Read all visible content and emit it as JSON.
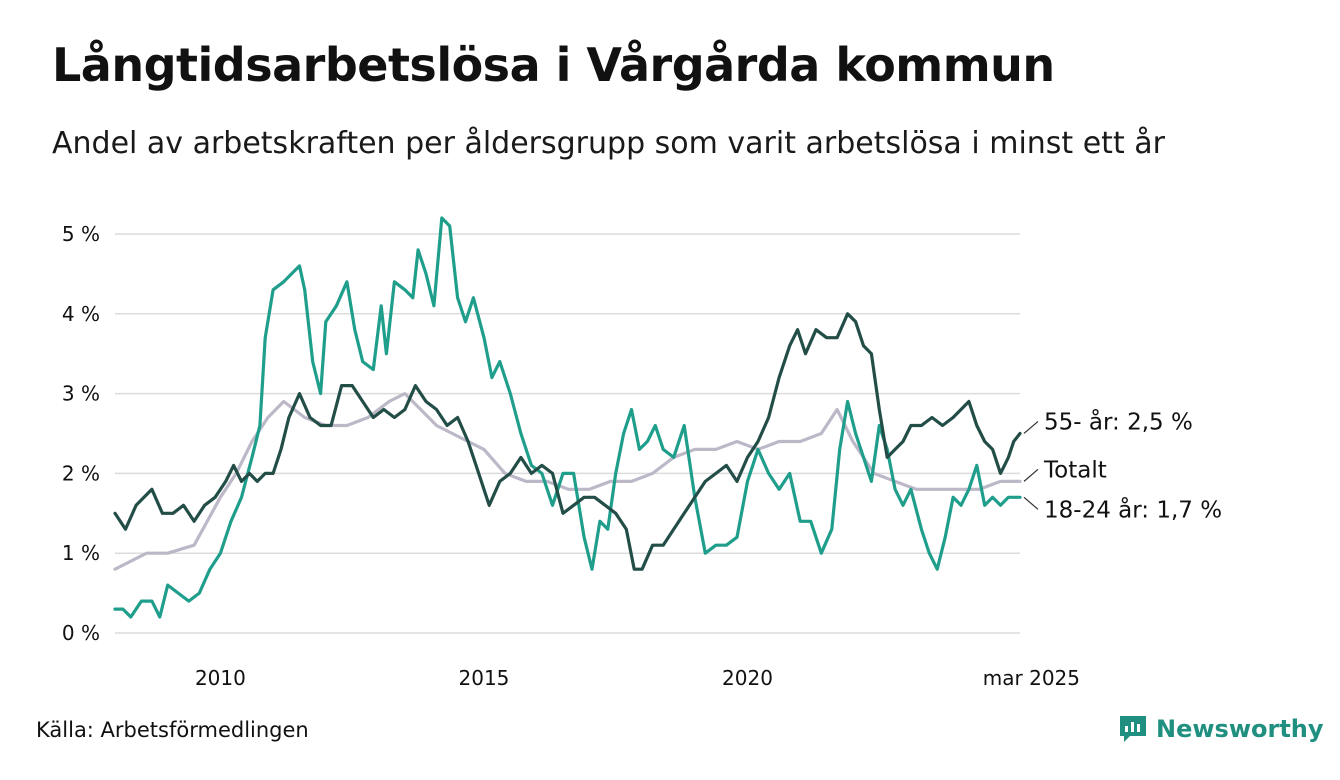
{
  "title": "Långtidsarbetslösa i Vårgårda kommun",
  "subtitle": "Andel av arbetskraften per åldersgrupp som varit arbetslösa i minst ett år",
  "source": "Källa: Arbetsförmedlingen",
  "brand": {
    "name": "Newsworthy",
    "icon": "newsworthy-logo-icon",
    "color": "#1f8f80"
  },
  "chart_data": {
    "type": "line",
    "ylim": [
      0,
      5.3
    ],
    "xlim": [
      2008.0,
      2025.17
    ],
    "yticks": [
      0,
      1,
      2,
      3,
      4,
      5
    ],
    "ytick_labels": [
      "0 %",
      "1 %",
      "2 %",
      "3 %",
      "4 %",
      "5 %"
    ],
    "xticks": [
      2010,
      2015,
      2020,
      2025.17
    ],
    "xtick_labels": [
      "2010",
      "2015",
      "2020",
      "mar 2025"
    ],
    "grid": true,
    "series": [
      {
        "name": "Totalt",
        "label": "Totalt",
        "color": "#bdb8c8",
        "points": [
          [
            2008.0,
            0.8
          ],
          [
            2008.3,
            0.9
          ],
          [
            2008.6,
            1.0
          ],
          [
            2009.0,
            1.0
          ],
          [
            2009.5,
            1.1
          ],
          [
            2010.0,
            1.7
          ],
          [
            2010.3,
            2.0
          ],
          [
            2010.6,
            2.4
          ],
          [
            2010.9,
            2.7
          ],
          [
            2011.2,
            2.9
          ],
          [
            2011.6,
            2.7
          ],
          [
            2012.0,
            2.6
          ],
          [
            2012.4,
            2.6
          ],
          [
            2012.8,
            2.7
          ],
          [
            2013.2,
            2.9
          ],
          [
            2013.5,
            3.0
          ],
          [
            2013.8,
            2.8
          ],
          [
            2014.1,
            2.6
          ],
          [
            2014.4,
            2.5
          ],
          [
            2014.7,
            2.4
          ],
          [
            2015.0,
            2.3
          ],
          [
            2015.4,
            2.0
          ],
          [
            2015.8,
            1.9
          ],
          [
            2016.2,
            1.9
          ],
          [
            2016.6,
            1.8
          ],
          [
            2017.0,
            1.8
          ],
          [
            2017.4,
            1.9
          ],
          [
            2017.8,
            1.9
          ],
          [
            2018.2,
            2.0
          ],
          [
            2018.6,
            2.2
          ],
          [
            2019.0,
            2.3
          ],
          [
            2019.4,
            2.3
          ],
          [
            2019.8,
            2.4
          ],
          [
            2020.2,
            2.3
          ],
          [
            2020.6,
            2.4
          ],
          [
            2021.0,
            2.4
          ],
          [
            2021.4,
            2.5
          ],
          [
            2021.7,
            2.8
          ],
          [
            2022.0,
            2.4
          ],
          [
            2022.4,
            2.0
          ],
          [
            2022.8,
            1.9
          ],
          [
            2023.2,
            1.8
          ],
          [
            2023.6,
            1.8
          ],
          [
            2024.0,
            1.8
          ],
          [
            2024.4,
            1.8
          ],
          [
            2024.8,
            1.9
          ],
          [
            2025.17,
            1.9
          ]
        ]
      },
      {
        "name": "18-24 år",
        "label": "18-24 år: 1,7 %",
        "color": "#1f9e8c",
        "points": [
          [
            2008.0,
            0.3
          ],
          [
            2008.15,
            0.3
          ],
          [
            2008.3,
            0.2
          ],
          [
            2008.5,
            0.4
          ],
          [
            2008.7,
            0.4
          ],
          [
            2008.85,
            0.2
          ],
          [
            2009.0,
            0.6
          ],
          [
            2009.2,
            0.5
          ],
          [
            2009.4,
            0.4
          ],
          [
            2009.6,
            0.5
          ],
          [
            2009.8,
            0.8
          ],
          [
            2010.0,
            1.0
          ],
          [
            2010.2,
            1.4
          ],
          [
            2010.4,
            1.7
          ],
          [
            2010.6,
            2.2
          ],
          [
            2010.75,
            2.6
          ],
          [
            2010.85,
            3.7
          ],
          [
            2011.0,
            4.3
          ],
          [
            2011.2,
            4.4
          ],
          [
            2011.35,
            4.5
          ],
          [
            2011.5,
            4.6
          ],
          [
            2011.6,
            4.3
          ],
          [
            2011.75,
            3.4
          ],
          [
            2011.9,
            3.0
          ],
          [
            2012.0,
            3.9
          ],
          [
            2012.2,
            4.1
          ],
          [
            2012.4,
            4.4
          ],
          [
            2012.55,
            3.8
          ],
          [
            2012.7,
            3.4
          ],
          [
            2012.9,
            3.3
          ],
          [
            2013.05,
            4.1
          ],
          [
            2013.15,
            3.5
          ],
          [
            2013.3,
            4.4
          ],
          [
            2013.5,
            4.3
          ],
          [
            2013.65,
            4.2
          ],
          [
            2013.75,
            4.8
          ],
          [
            2013.9,
            4.5
          ],
          [
            2014.05,
            4.1
          ],
          [
            2014.2,
            5.2
          ],
          [
            2014.35,
            5.1
          ],
          [
            2014.5,
            4.2
          ],
          [
            2014.65,
            3.9
          ],
          [
            2014.8,
            4.2
          ],
          [
            2015.0,
            3.7
          ],
          [
            2015.15,
            3.2
          ],
          [
            2015.3,
            3.4
          ],
          [
            2015.5,
            3.0
          ],
          [
            2015.7,
            2.5
          ],
          [
            2015.9,
            2.1
          ],
          [
            2016.1,
            2.0
          ],
          [
            2016.3,
            1.6
          ],
          [
            2016.5,
            2.0
          ],
          [
            2016.7,
            2.0
          ],
          [
            2016.9,
            1.2
          ],
          [
            2017.05,
            0.8
          ],
          [
            2017.2,
            1.4
          ],
          [
            2017.35,
            1.3
          ],
          [
            2017.5,
            2.0
          ],
          [
            2017.65,
            2.5
          ],
          [
            2017.8,
            2.8
          ],
          [
            2017.95,
            2.3
          ],
          [
            2018.1,
            2.4
          ],
          [
            2018.25,
            2.6
          ],
          [
            2018.4,
            2.3
          ],
          [
            2018.6,
            2.2
          ],
          [
            2018.8,
            2.6
          ],
          [
            2019.0,
            1.7
          ],
          [
            2019.2,
            1.0
          ],
          [
            2019.4,
            1.1
          ],
          [
            2019.6,
            1.1
          ],
          [
            2019.8,
            1.2
          ],
          [
            2020.0,
            1.9
          ],
          [
            2020.2,
            2.3
          ],
          [
            2020.4,
            2.0
          ],
          [
            2020.6,
            1.8
          ],
          [
            2020.8,
            2.0
          ],
          [
            2021.0,
            1.4
          ],
          [
            2021.2,
            1.4
          ],
          [
            2021.4,
            1.0
          ],
          [
            2021.6,
            1.3
          ],
          [
            2021.75,
            2.3
          ],
          [
            2021.9,
            2.9
          ],
          [
            2022.05,
            2.5
          ],
          [
            2022.2,
            2.2
          ],
          [
            2022.35,
            1.9
          ],
          [
            2022.5,
            2.6
          ],
          [
            2022.65,
            2.3
          ],
          [
            2022.8,
            1.8
          ],
          [
            2022.95,
            1.6
          ],
          [
            2023.1,
            1.8
          ],
          [
            2023.3,
            1.3
          ],
          [
            2023.45,
            1.0
          ],
          [
            2023.6,
            0.8
          ],
          [
            2023.75,
            1.2
          ],
          [
            2023.9,
            1.7
          ],
          [
            2024.05,
            1.6
          ],
          [
            2024.2,
            1.8
          ],
          [
            2024.35,
            2.1
          ],
          [
            2024.5,
            1.6
          ],
          [
            2024.65,
            1.7
          ],
          [
            2024.8,
            1.6
          ],
          [
            2024.95,
            1.7
          ],
          [
            2025.17,
            1.7
          ]
        ]
      },
      {
        "name": "55- år",
        "label": "55- år: 2,5 %",
        "color": "#234d47",
        "points": [
          [
            2008.0,
            1.5
          ],
          [
            2008.2,
            1.3
          ],
          [
            2008.4,
            1.6
          ],
          [
            2008.55,
            1.7
          ],
          [
            2008.7,
            1.8
          ],
          [
            2008.9,
            1.5
          ],
          [
            2009.1,
            1.5
          ],
          [
            2009.3,
            1.6
          ],
          [
            2009.5,
            1.4
          ],
          [
            2009.7,
            1.6
          ],
          [
            2009.9,
            1.7
          ],
          [
            2010.1,
            1.9
          ],
          [
            2010.25,
            2.1
          ],
          [
            2010.4,
            1.9
          ],
          [
            2010.55,
            2.0
          ],
          [
            2010.7,
            1.9
          ],
          [
            2010.85,
            2.0
          ],
          [
            2011.0,
            2.0
          ],
          [
            2011.15,
            2.3
          ],
          [
            2011.3,
            2.7
          ],
          [
            2011.5,
            3.0
          ],
          [
            2011.7,
            2.7
          ],
          [
            2011.9,
            2.6
          ],
          [
            2012.1,
            2.6
          ],
          [
            2012.3,
            3.1
          ],
          [
            2012.5,
            3.1
          ],
          [
            2012.7,
            2.9
          ],
          [
            2012.9,
            2.7
          ],
          [
            2013.1,
            2.8
          ],
          [
            2013.3,
            2.7
          ],
          [
            2013.5,
            2.8
          ],
          [
            2013.7,
            3.1
          ],
          [
            2013.9,
            2.9
          ],
          [
            2014.1,
            2.8
          ],
          [
            2014.3,
            2.6
          ],
          [
            2014.5,
            2.7
          ],
          [
            2014.7,
            2.4
          ],
          [
            2014.9,
            2.0
          ],
          [
            2015.1,
            1.6
          ],
          [
            2015.3,
            1.9
          ],
          [
            2015.5,
            2.0
          ],
          [
            2015.7,
            2.2
          ],
          [
            2015.9,
            2.0
          ],
          [
            2016.1,
            2.1
          ],
          [
            2016.3,
            2.0
          ],
          [
            2016.5,
            1.5
          ],
          [
            2016.7,
            1.6
          ],
          [
            2016.9,
            1.7
          ],
          [
            2017.1,
            1.7
          ],
          [
            2017.3,
            1.6
          ],
          [
            2017.5,
            1.5
          ],
          [
            2017.7,
            1.3
          ],
          [
            2017.85,
            0.8
          ],
          [
            2018.0,
            0.8
          ],
          [
            2018.2,
            1.1
          ],
          [
            2018.4,
            1.1
          ],
          [
            2018.6,
            1.3
          ],
          [
            2018.8,
            1.5
          ],
          [
            2019.0,
            1.7
          ],
          [
            2019.2,
            1.9
          ],
          [
            2019.4,
            2.0
          ],
          [
            2019.6,
            2.1
          ],
          [
            2019.8,
            1.9
          ],
          [
            2020.0,
            2.2
          ],
          [
            2020.2,
            2.4
          ],
          [
            2020.4,
            2.7
          ],
          [
            2020.6,
            3.2
          ],
          [
            2020.8,
            3.6
          ],
          [
            2020.95,
            3.8
          ],
          [
            2021.1,
            3.5
          ],
          [
            2021.3,
            3.8
          ],
          [
            2021.5,
            3.7
          ],
          [
            2021.7,
            3.7
          ],
          [
            2021.9,
            4.0
          ],
          [
            2022.05,
            3.9
          ],
          [
            2022.2,
            3.6
          ],
          [
            2022.35,
            3.5
          ],
          [
            2022.5,
            2.8
          ],
          [
            2022.65,
            2.2
          ],
          [
            2022.8,
            2.3
          ],
          [
            2022.95,
            2.4
          ],
          [
            2023.1,
            2.6
          ],
          [
            2023.3,
            2.6
          ],
          [
            2023.5,
            2.7
          ],
          [
            2023.7,
            2.6
          ],
          [
            2023.9,
            2.7
          ],
          [
            2024.05,
            2.8
          ],
          [
            2024.2,
            2.9
          ],
          [
            2024.35,
            2.6
          ],
          [
            2024.5,
            2.4
          ],
          [
            2024.65,
            2.3
          ],
          [
            2024.8,
            2.0
          ],
          [
            2024.95,
            2.2
          ],
          [
            2025.05,
            2.4
          ],
          [
            2025.17,
            2.5
          ]
        ]
      }
    ]
  }
}
